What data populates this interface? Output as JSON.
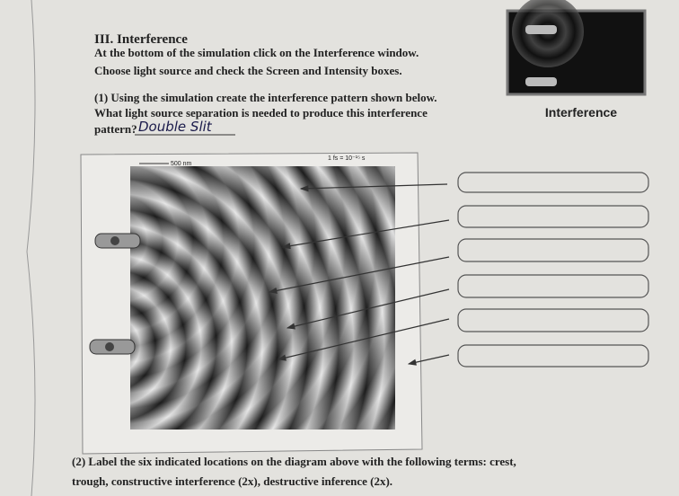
{
  "header": {
    "title": "III. Interference"
  },
  "instructions": [
    "At the bottom of the simulation click on the Interference window.",
    "Choose light source and check the Screen and Intensity boxes."
  ],
  "question1": {
    "lines": [
      "(1) Using the simulation create the interference pattern shown below.",
      "What light source separation is needed to produce this interference",
      "pattern?"
    ],
    "answer": "Double Slit"
  },
  "thumbnail": {
    "label": "Interference"
  },
  "diagram": {
    "scale_label": "500 nm",
    "time_label": "1 fs = 10⁻¹⁵ s"
  },
  "question2": {
    "lines": [
      "(2) Label the six indicated locations on the diagram above with the following terms: crest,",
      "trough, constructive interference (2x), destructive inference (2x)."
    ]
  }
}
